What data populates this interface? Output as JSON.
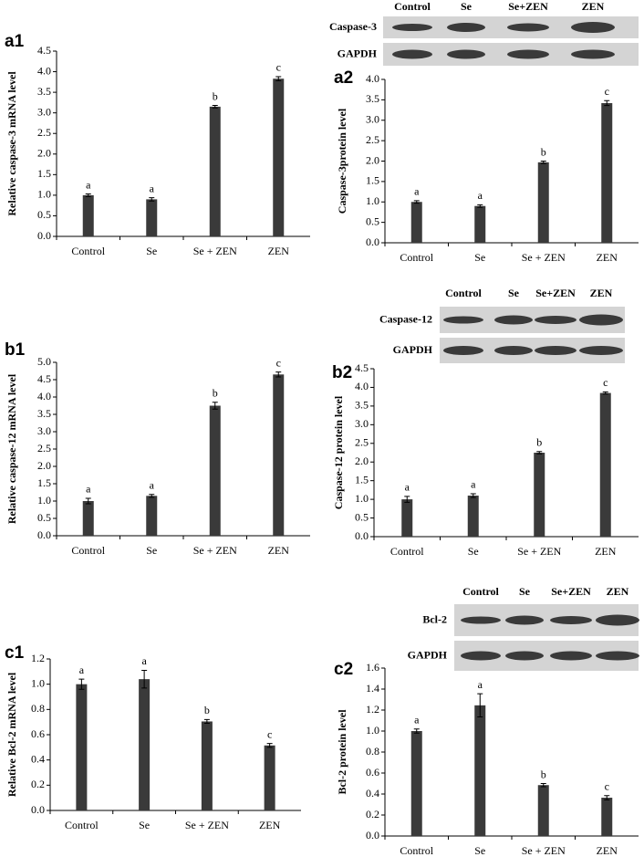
{
  "chart_data": [
    {
      "type": "bar",
      "panel": "a1",
      "y_label": "Relative caspase-3 mRNA level",
      "categories": [
        "Control",
        "Se",
        "Se + ZEN",
        "ZEN"
      ],
      "values": [
        1.0,
        0.9,
        3.15,
        3.83
      ],
      "errors": [
        0.03,
        0.04,
        0.03,
        0.05
      ],
      "annotations": [
        "a",
        "a",
        "b",
        "c"
      ],
      "color": "#3a3a3a",
      "ylim": [
        0,
        4.5
      ],
      "yticks": [
        {
          "value": 0,
          "label": "0.0"
        },
        0.5,
        {
          "value": 1,
          "label": "1.0"
        },
        1.5,
        {
          "value": 2,
          "label": "2.0"
        },
        2.5,
        {
          "value": 3,
          "label": "3.0"
        },
        3.5,
        {
          "value": 4,
          "label": "4.0"
        },
        4.5
      ]
    },
    {
      "type": "bar",
      "panel": "a2",
      "y_label": "Caspase-3protein level",
      "categories": [
        "Control",
        "Se",
        "Se + ZEN",
        "ZEN"
      ],
      "values": [
        1.0,
        0.9,
        1.97,
        3.42
      ],
      "errors": [
        0.03,
        0.03,
        0.03,
        0.06
      ],
      "annotations": [
        "a",
        "a",
        "b",
        "c"
      ],
      "color": "#3a3a3a",
      "ylim": [
        0,
        4
      ],
      "yticks": [
        {
          "value": 0,
          "label": "0.0"
        },
        0.5,
        {
          "value": 1,
          "label": "1.0"
        },
        1.5,
        {
          "value": 2,
          "label": "2.0"
        },
        2.5,
        {
          "value": 3,
          "label": "3.0"
        },
        3.5,
        {
          "value": 4,
          "label": "4.0"
        }
      ],
      "blot": {
        "columns": [
          "Control",
          "Se",
          "Se+ZEN",
          "ZEN"
        ],
        "rows": [
          "Caspase-3",
          "GAPDH"
        ]
      }
    },
    {
      "type": "bar",
      "panel": "b1",
      "y_label": "Relative caspase-12 mRNA level",
      "categories": [
        "Control",
        "Se",
        "Se + ZEN",
        "ZEN"
      ],
      "values": [
        1.0,
        1.15,
        3.75,
        4.65
      ],
      "errors": [
        0.08,
        0.04,
        0.1,
        0.07
      ],
      "annotations": [
        "a",
        "a",
        "b",
        "c"
      ],
      "color": "#3a3a3a",
      "ylim": [
        0,
        5
      ],
      "yticks": [
        {
          "value": 0,
          "label": "0.0"
        },
        0.5,
        {
          "value": 1,
          "label": "1.0"
        },
        1.5,
        {
          "value": 2,
          "label": "2.0"
        },
        2.5,
        {
          "value": 3,
          "label": "3.0"
        },
        3.5,
        {
          "value": 4,
          "label": "4.0"
        },
        4.5,
        {
          "value": 5,
          "label": "5.0"
        }
      ]
    },
    {
      "type": "bar",
      "panel": "b2",
      "y_label": "Caspase-12 protein level",
      "categories": [
        "Control",
        "Se",
        "Se + ZEN",
        "ZEN"
      ],
      "values": [
        1.0,
        1.1,
        2.25,
        3.85
      ],
      "errors": [
        0.08,
        0.05,
        0.03,
        0.03
      ],
      "annotations": [
        "a",
        "a",
        "b",
        "c"
      ],
      "color": "#3a3a3a",
      "ylim": [
        0,
        4.5
      ],
      "yticks": [
        {
          "value": 0,
          "label": "0.0"
        },
        0.5,
        {
          "value": 1,
          "label": "1.0"
        },
        1.5,
        {
          "value": 2,
          "label": "2.0"
        },
        2.5,
        {
          "value": 3,
          "label": "3.0"
        },
        3.5,
        {
          "value": 4,
          "label": "4.0"
        },
        4.5
      ],
      "blot": {
        "columns": [
          "Control",
          "Se",
          "Se+ZEN",
          "ZEN"
        ],
        "rows": [
          "Caspase-12",
          "GAPDH"
        ]
      }
    },
    {
      "type": "bar",
      "panel": "c1",
      "y_label": "Relative Bcl-2 mRNA level",
      "categories": [
        "Control",
        "Se",
        "Se + ZEN",
        "ZEN"
      ],
      "values": [
        1.0,
        1.04,
        0.705,
        0.515
      ],
      "errors": [
        0.04,
        0.07,
        0.015,
        0.015
      ],
      "annotations": [
        "a",
        "a",
        "b",
        "c"
      ],
      "color": "#3a3a3a",
      "ylim": [
        0,
        1.2
      ],
      "yticks": [
        {
          "value": 0,
          "label": "0.0"
        },
        0.2,
        0.4,
        0.6,
        0.8,
        {
          "value": 1,
          "label": "1.0"
        },
        1.2
      ]
    },
    {
      "type": "bar",
      "panel": "c2",
      "y_label": "Bcl-2 protein level",
      "categories": [
        "Control",
        "Se",
        "Se + ZEN",
        "ZEN"
      ],
      "values": [
        1.0,
        1.245,
        0.485,
        0.365
      ],
      "errors": [
        0.02,
        0.11,
        0.015,
        0.02
      ],
      "annotations": [
        "a",
        "a",
        "b",
        "c"
      ],
      "color": "#3a3a3a",
      "ylim": [
        0,
        1.6
      ],
      "yticks": [
        {
          "value": 0,
          "label": "0.0"
        },
        0.2,
        0.4,
        0.6,
        0.8,
        {
          "value": 1,
          "label": "1.0"
        },
        1.2,
        1.4,
        1.6
      ],
      "blot": {
        "columns": [
          "Control",
          "Se",
          "Se+ZEN",
          "ZEN"
        ],
        "rows": [
          "Bcl-2",
          "GAPDH"
        ]
      }
    }
  ]
}
